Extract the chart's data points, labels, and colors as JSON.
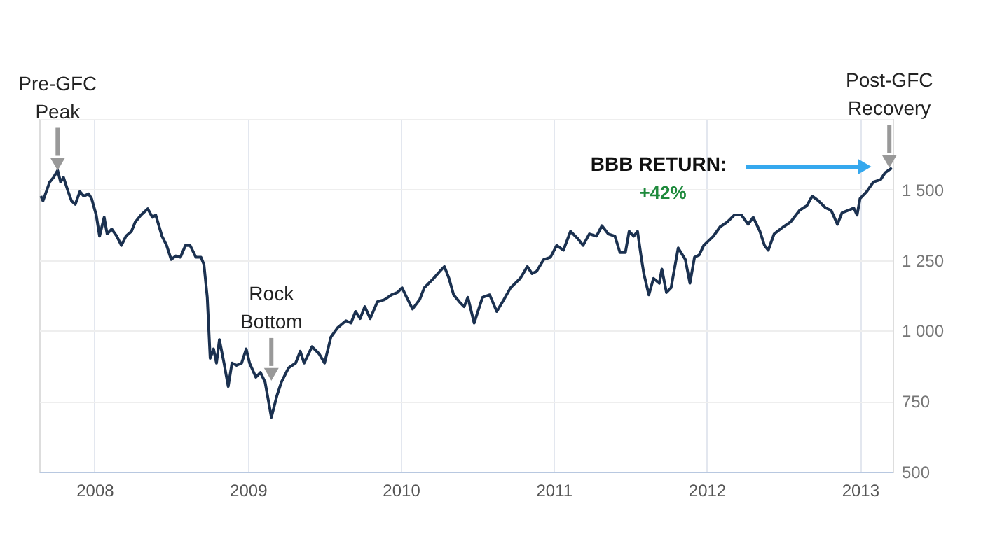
{
  "chart_data": {
    "type": "line",
    "x": [
      "2007-08-26",
      "2007-08-31",
      "2007-09-16",
      "2007-09-25",
      "2007-10-05",
      "2007-10-12",
      "2007-10-19",
      "2007-10-30",
      "2007-11-07",
      "2007-11-16",
      "2007-11-27",
      "2007-12-06",
      "2007-12-18",
      "2007-12-25",
      "2008-01-05",
      "2008-01-13",
      "2008-01-24",
      "2008-01-31",
      "2008-02-11",
      "2008-02-23",
      "2008-03-05",
      "2008-03-16",
      "2008-03-29",
      "2008-04-07",
      "2008-04-21",
      "2008-05-07",
      "2008-05-18",
      "2008-05-26",
      "2008-06-10",
      "2008-06-21",
      "2008-07-02",
      "2008-07-13",
      "2008-07-24",
      "2008-08-05",
      "2008-08-16",
      "2008-08-30",
      "2008-09-11",
      "2008-09-18",
      "2008-09-26",
      "2008-10-03",
      "2008-10-11",
      "2008-10-18",
      "2008-10-25",
      "2008-11-05",
      "2008-11-15",
      "2008-11-24",
      "2008-12-05",
      "2008-12-17",
      "2008-12-28",
      "2009-01-05",
      "2009-01-20",
      "2009-01-31",
      "2009-02-11",
      "2009-02-26",
      "2009-03-11",
      "2009-03-22",
      "2009-04-08",
      "2009-04-25",
      "2009-05-06",
      "2009-05-15",
      "2009-06-03",
      "2009-06-20",
      "2009-07-03",
      "2009-07-18",
      "2009-08-03",
      "2009-08-23",
      "2009-09-04",
      "2009-09-15",
      "2009-09-26",
      "2009-10-07",
      "2009-10-20",
      "2009-11-06",
      "2009-11-23",
      "2009-12-10",
      "2009-12-24",
      "2010-01-04",
      "2010-01-15",
      "2010-01-29",
      "2010-02-15",
      "2010-02-26",
      "2010-03-20",
      "2010-04-04",
      "2010-04-15",
      "2010-04-26",
      "2010-05-07",
      "2010-05-21",
      "2010-06-01",
      "2010-06-10",
      "2010-06-25",
      "2010-07-04",
      "2010-07-15",
      "2010-08-01",
      "2010-08-18",
      "2010-09-04",
      "2010-09-20",
      "2010-10-13",
      "2010-10-30",
      "2010-11-10",
      "2010-11-21",
      "2010-12-08",
      "2010-12-24",
      "2011-01-08",
      "2011-01-24",
      "2011-02-10",
      "2011-02-27",
      "2011-03-12",
      "2011-03-27",
      "2011-04-13",
      "2011-04-26",
      "2011-05-11",
      "2011-05-27",
      "2011-06-08",
      "2011-06-21",
      "2011-06-30",
      "2011-07-11",
      "2011-07-20",
      "2011-07-28",
      "2011-08-04",
      "2011-08-16",
      "2011-08-27",
      "2011-09-10",
      "2011-09-16",
      "2011-09-27",
      "2011-10-08",
      "2011-10-25",
      "2011-11-11",
      "2011-11-22",
      "2011-12-03",
      "2011-12-14",
      "2011-12-25",
      "2012-01-17",
      "2012-02-02",
      "2012-02-19",
      "2012-03-07",
      "2012-03-24",
      "2012-04-09",
      "2012-04-21",
      "2012-05-07",
      "2012-05-18",
      "2012-05-27",
      "2012-06-10",
      "2012-07-02",
      "2012-07-19",
      "2012-08-10",
      "2012-08-27",
      "2012-09-09",
      "2012-09-24",
      "2012-10-11",
      "2012-10-24",
      "2012-11-08",
      "2012-11-19",
      "2012-12-05",
      "2012-12-17",
      "2012-12-25",
      "2013-01-01",
      "2013-01-17",
      "2013-02-02",
      "2013-02-19",
      "2013-03-02",
      "2013-03-18"
    ],
    "series": [
      {
        "color": "#1b3150",
        "values": [
          1477,
          1460,
          1527,
          1543,
          1568,
          1527,
          1543,
          1493,
          1460,
          1448,
          1493,
          1477,
          1485,
          1468,
          1410,
          1335,
          1402,
          1343,
          1360,
          1335,
          1302,
          1335,
          1352,
          1385,
          1410,
          1432,
          1402,
          1410,
          1335,
          1302,
          1252,
          1265,
          1260,
          1302,
          1302,
          1260,
          1260,
          1235,
          1118,
          902,
          935,
          885,
          968,
          885,
          802,
          885,
          877,
          885,
          935,
          885,
          835,
          852,
          818,
          693,
          768,
          818,
          868,
          885,
          927,
          885,
          943,
          918,
          885,
          977,
          1010,
          1035,
          1027,
          1068,
          1043,
          1085,
          1043,
          1102,
          1110,
          1127,
          1135,
          1152,
          1118,
          1077,
          1110,
          1152,
          1185,
          1210,
          1227,
          1185,
          1127,
          1102,
          1085,
          1118,
          1027,
          1068,
          1118,
          1127,
          1068,
          1110,
          1152,
          1185,
          1227,
          1202,
          1210,
          1252,
          1260,
          1302,
          1285,
          1352,
          1327,
          1302,
          1343,
          1335,
          1372,
          1343,
          1335,
          1277,
          1277,
          1352,
          1335,
          1352,
          1268,
          1202,
          1127,
          1185,
          1168,
          1218,
          1135,
          1152,
          1293,
          1252,
          1168,
          1260,
          1268,
          1302,
          1335,
          1368,
          1385,
          1410,
          1410,
          1377,
          1402,
          1352,
          1302,
          1285,
          1343,
          1368,
          1385,
          1427,
          1443,
          1477,
          1460,
          1435,
          1427,
          1377,
          1418,
          1427,
          1435,
          1410,
          1468,
          1493,
          1527,
          1535,
          1560,
          1577
        ]
      }
    ],
    "xlim": [
      "2007-08-22",
      "2013-03-20"
    ],
    "xticks": [
      "2008",
      "2009",
      "2010",
      "2011",
      "2012",
      "2013"
    ],
    "ylim": [
      500,
      1750
    ],
    "yticks": [
      500,
      750,
      {
        "value": 1000,
        "label": "1 000"
      },
      {
        "value": 1250,
        "label": "1 250"
      },
      {
        "value": 1500,
        "label": "1 500"
      },
      {
        "value": 1750,
        "label": null
      }
    ],
    "grid": true,
    "annotations": [
      {
        "text": "Pre-GFC Peak",
        "x": "2007-10-05",
        "y": 1590
      },
      {
        "text": "Rock Bottom",
        "x": "2009-02-26",
        "y": 845
      },
      {
        "text": "Post-GFC Recovery",
        "x": "2013-03-12",
        "y": 1600
      },
      "BBB RETURN:",
      "+42%"
    ]
  }
}
